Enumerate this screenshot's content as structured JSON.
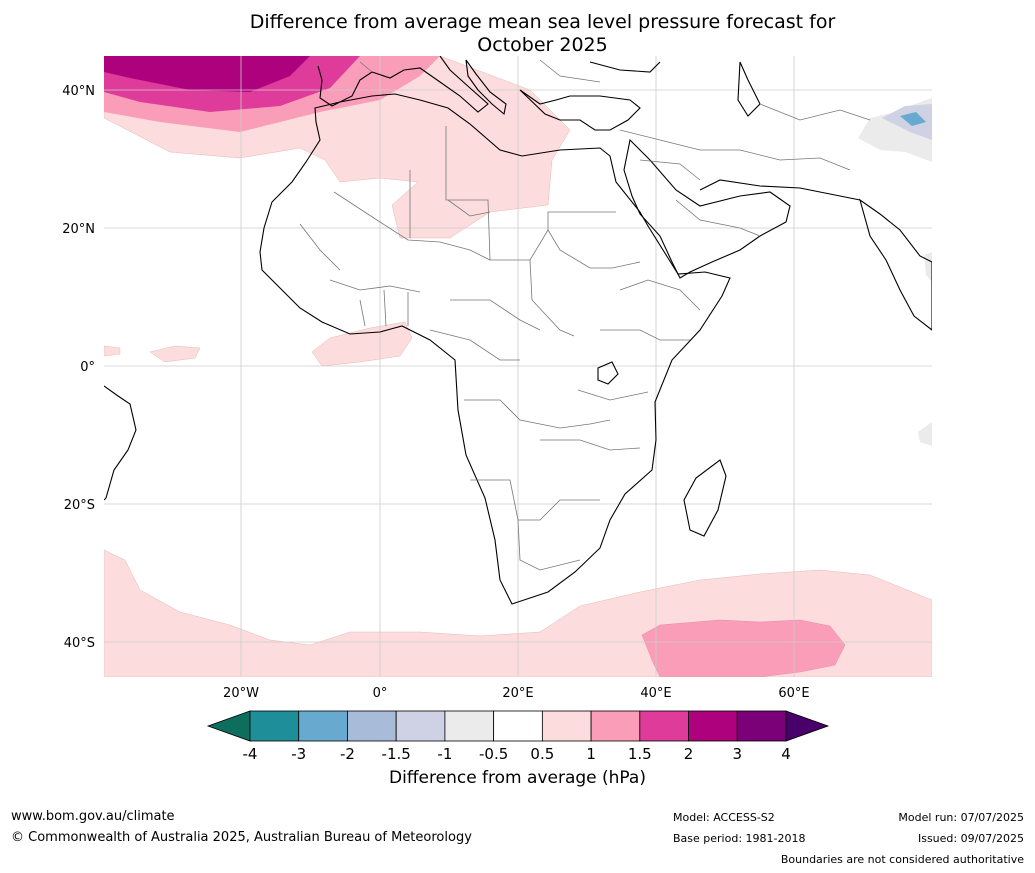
{
  "title_line1": "Difference from average mean sea level pressure forecast for",
  "title_line2": "October 2025",
  "lat_labels": [
    "40°N",
    "20°N",
    "0°",
    "20°S",
    "40°S"
  ],
  "lon_labels": [
    "20°W",
    "0°",
    "20°E",
    "40°E",
    "60°E"
  ],
  "colorbar": {
    "title": "Difference from average (hPa)",
    "ticks": [
      "-4",
      "-3",
      "-2",
      "-1.5",
      "-1",
      "-0.5",
      "0.5",
      "1",
      "1.5",
      "2",
      "3",
      "4"
    ],
    "colors": [
      "#0e6e5e",
      "#1e8e98",
      "#68a9cf",
      "#a8bbd9",
      "#cfd1e4",
      "#ebebeb",
      "#ffffff",
      "#fcdcdc",
      "#f99db9",
      "#de3b9a",
      "#ae017e",
      "#7a0177",
      "#49006a"
    ]
  },
  "footer": {
    "url": "www.bom.gov.au/climate",
    "copyright": "© Commonwealth of Australia 2025, Australian Bureau of Meteorology",
    "model": "Model: ACCESS-S2",
    "base_period": "Base period: 1981-2018",
    "model_run": "Model run: 07/07/2025",
    "issued": "Issued: 09/07/2025",
    "disclaimer": "Boundaries are not considered authoritative"
  }
}
